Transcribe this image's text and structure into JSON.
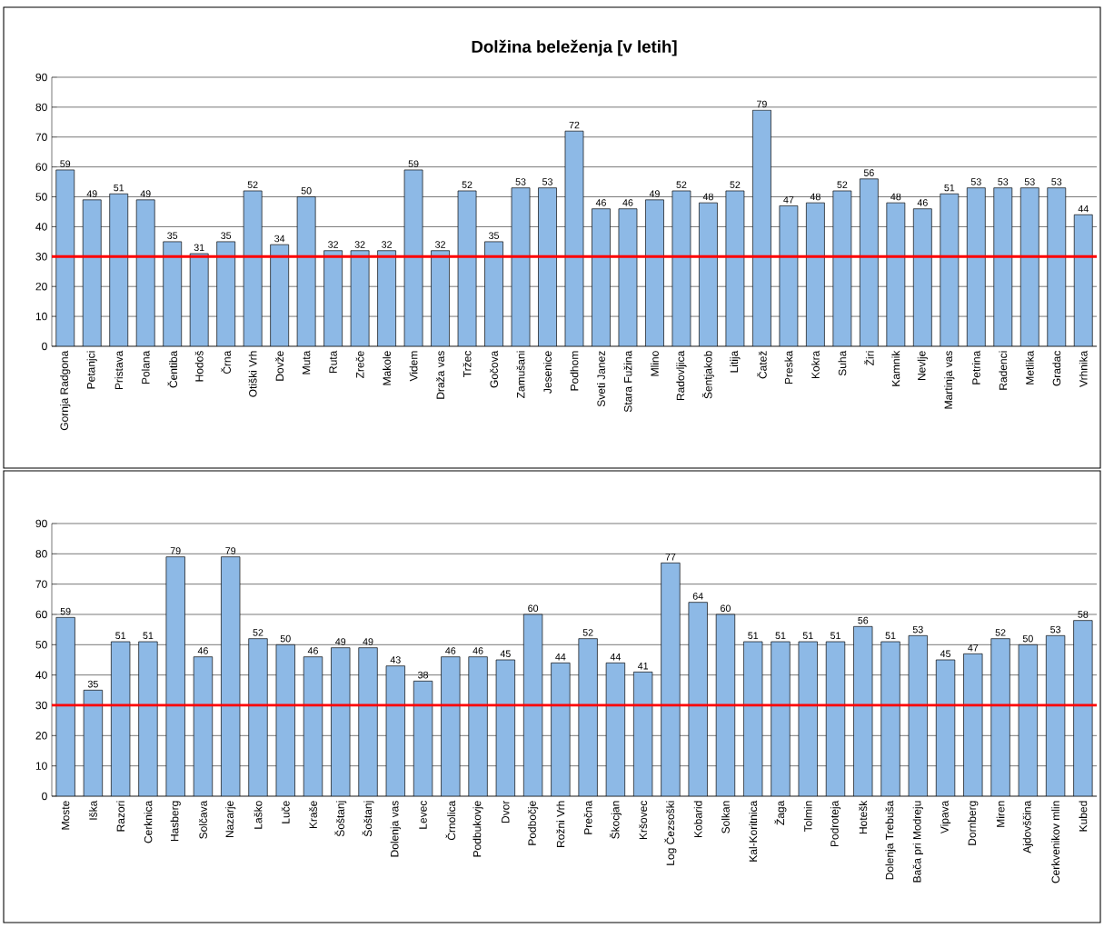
{
  "chart_data": [
    {
      "type": "bar",
      "title": "Dolžina beleženja [v letih]",
      "categories": [
        "Gornja Radgona",
        "Petanjci",
        "Pristava",
        "Polana",
        "Čentiba",
        "Hodoš",
        "Črna",
        "Otiški Vrh",
        "Dovže",
        "Muta",
        "Ruta",
        "Zreče",
        "Makole",
        "Videm",
        "Draža vas",
        "Tržec",
        "Gočova",
        "Zamušani",
        "Jesenice",
        "Podhom",
        "Sveti Janez",
        "Stara Fužina",
        "Mlino",
        "Radovljica",
        "Šentjakob",
        "Litija",
        "Čatež",
        "Preska",
        "Kokra",
        "Suha",
        "Žiri",
        "Kamnik",
        "Nevlje",
        "Martinja vas",
        "Petrina",
        "Radenci",
        "Metlika",
        "Gradac",
        "Vrhnika"
      ],
      "values": [
        59,
        49,
        51,
        49,
        35,
        31,
        35,
        52,
        34,
        50,
        32,
        32,
        32,
        59,
        32,
        52,
        35,
        53,
        53,
        72,
        46,
        46,
        49,
        52,
        48,
        52,
        79,
        47,
        48,
        52,
        56,
        48,
        46,
        51,
        53,
        53,
        53,
        53,
        44
      ],
      "color": "#8db9e6",
      "ylim": [
        0,
        90
      ],
      "yticks": [
        0,
        10,
        20,
        30,
        40,
        50,
        60,
        70,
        80,
        90
      ],
      "grid": "y",
      "data_labels": true,
      "ref_lines": [
        {
          "axis": "y",
          "value": 30,
          "color": "#ff0000"
        }
      ]
    },
    {
      "type": "bar",
      "categories": [
        "Moste",
        "Iška",
        "Razori",
        "Cerknica",
        "Hasberg",
        "Solčava",
        "Nazarje",
        "Laško",
        "Luče",
        "Kraše",
        "Šoštanj",
        "Šoštanj",
        "Dolenja vas",
        "Levec",
        "Črnolica",
        "Podbukovje",
        "Dvor",
        "Podbočje",
        "Rožni Vrh",
        "Prečna",
        "Škocjan",
        "Kršovec",
        "Log Čezsoški",
        "Kobarid",
        "Solkan",
        "Kal-Koritnica",
        "Žaga",
        "Tolmin",
        "Podroteja",
        "Hotešk",
        "Dolenja Trebuša",
        "Bača pri Modreju",
        "Vipava",
        "Dornberg",
        "Miren",
        "Ajdovščina",
        "Cerkvenikov mlin",
        "Kubed"
      ],
      "values": [
        59,
        35,
        51,
        51,
        79,
        46,
        79,
        52,
        50,
        46,
        49,
        49,
        43,
        38,
        46,
        46,
        45,
        60,
        44,
        52,
        44,
        41,
        77,
        64,
        60,
        51,
        51,
        51,
        51,
        56,
        51,
        53,
        45,
        47,
        52,
        50,
        53,
        58
      ],
      "color": "#8db9e6",
      "ylim": [
        0,
        90
      ],
      "yticks": [
        0,
        10,
        20,
        30,
        40,
        50,
        60,
        70,
        80,
        90
      ],
      "grid": "y",
      "data_labels": true,
      "ref_lines": [
        {
          "axis": "y",
          "value": 30,
          "color": "#ff0000"
        }
      ]
    }
  ]
}
